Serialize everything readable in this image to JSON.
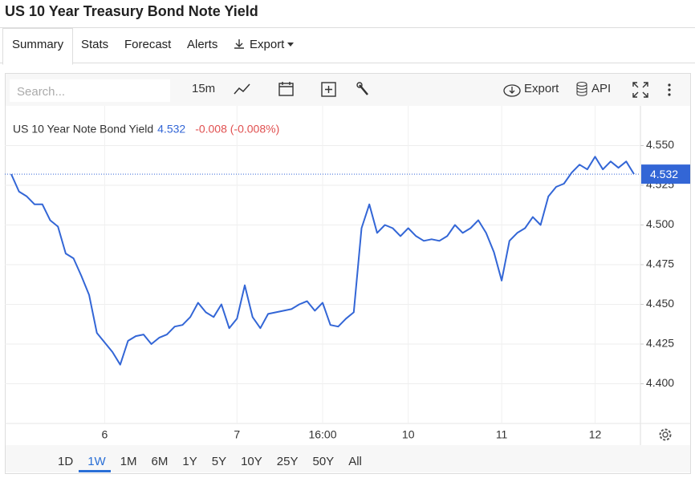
{
  "title": "US 10 Year Treasury Bond Note Yield",
  "tabs": [
    "Summary",
    "Stats",
    "Forecast",
    "Alerts",
    "Export"
  ],
  "toolbar": {
    "search_placeholder": "Search...",
    "interval": "15m",
    "export": "Export",
    "api": "API"
  },
  "chart_data": {
    "type": "line",
    "categories": [
      null,
      null,
      null,
      null,
      null,
      null,
      null,
      null,
      null,
      null,
      null,
      null,
      "6",
      null,
      null,
      null,
      null,
      null,
      null,
      null,
      null,
      null,
      null,
      null,
      null,
      null,
      null,
      null,
      null,
      "7",
      null,
      null,
      null,
      null,
      null,
      null,
      null,
      null,
      null,
      null,
      "16:00",
      null,
      null,
      null,
      null,
      null,
      null,
      null,
      null,
      null,
      null,
      "10",
      null,
      null,
      null,
      null,
      null,
      null,
      null,
      null,
      null,
      null,
      null,
      "11",
      null,
      null,
      null,
      null,
      null,
      null,
      null,
      null,
      null,
      null,
      null,
      "12",
      null,
      null,
      null,
      null,
      null
    ],
    "series": [
      {
        "name": "US 10 Year Note Bond Yield",
        "color": "#3366d6",
        "values": [
          4.532,
          4.521,
          4.518,
          4.513,
          4.513,
          4.503,
          4.499,
          4.482,
          4.479,
          4.468,
          4.456,
          4.432,
          4.426,
          4.42,
          4.412,
          4.427,
          4.43,
          4.431,
          4.425,
          4.429,
          4.431,
          4.436,
          4.437,
          4.442,
          4.451,
          4.445,
          4.442,
          4.45,
          4.435,
          4.441,
          4.462,
          4.442,
          4.435,
          4.444,
          4.445,
          4.446,
          4.447,
          4.45,
          4.452,
          4.446,
          4.451,
          4.437,
          4.436,
          4.441,
          4.445,
          4.498,
          4.513,
          4.495,
          4.5,
          4.498,
          4.493,
          4.498,
          4.493,
          4.49,
          4.491,
          4.49,
          4.493,
          4.5,
          4.495,
          4.498,
          4.503,
          4.495,
          4.483,
          4.465,
          4.49,
          4.495,
          4.498,
          4.505,
          4.5,
          4.518,
          4.524,
          4.526,
          4.533,
          4.538,
          4.535,
          4.543,
          4.535,
          4.54,
          4.536,
          4.54,
          4.532
        ]
      }
    ],
    "legend": {
      "last": "4.532",
      "change": "-0.008 (-0.008%)"
    },
    "ylim": [
      4.375,
      4.575
    ],
    "yticks": [
      {
        "value": 4.4,
        "label": "4.400"
      },
      4.425,
      {
        "value": 4.45,
        "label": "4.450"
      },
      4.475,
      {
        "value": 4.5,
        "label": "4.500"
      },
      4.525,
      {
        "value": 4.55,
        "label": "4.550"
      }
    ],
    "grid": true
  },
  "ranges": [
    "1D",
    "1W",
    "1M",
    "6M",
    "1Y",
    "5Y",
    "10Y",
    "25Y",
    "50Y",
    "All"
  ],
  "selected_range": "1W"
}
